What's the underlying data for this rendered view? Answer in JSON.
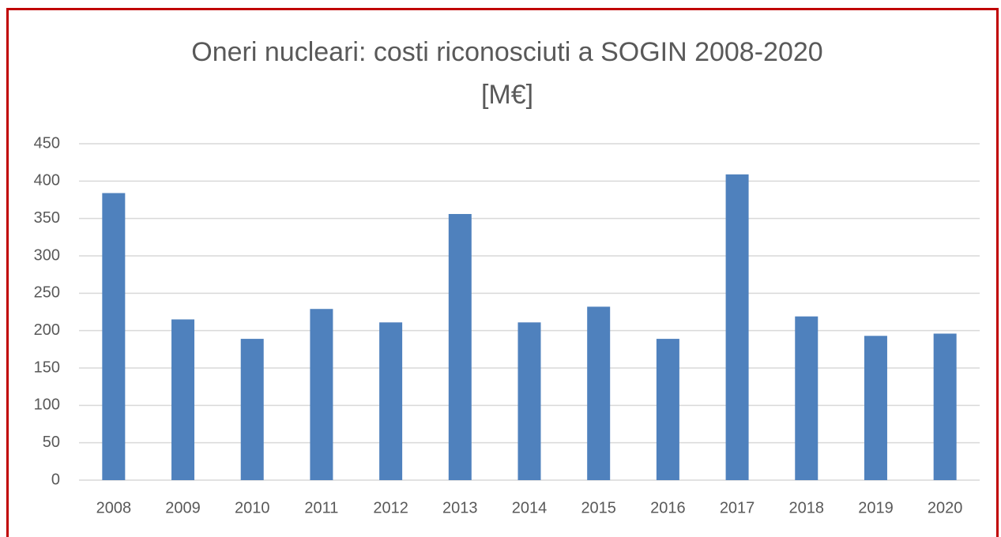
{
  "chart_data": {
    "type": "bar",
    "title": [
      "Oneri nucleari: costi riconosciuti a SOGIN 2008-2020",
      "[M€]"
    ],
    "categories": [
      "2008",
      "2009",
      "2010",
      "2011",
      "2012",
      "2013",
      "2014",
      "2015",
      "2016",
      "2017",
      "2018",
      "2019",
      "2020"
    ],
    "values": [
      384,
      215,
      189,
      229,
      211,
      356,
      211,
      232,
      189,
      409,
      219,
      193,
      196
    ],
    "color": "#4f81bd",
    "ylim": [
      0,
      450
    ],
    "yticks": [
      0,
      50,
      100,
      150,
      200,
      250,
      300,
      350,
      400,
      450
    ],
    "grid": true
  }
}
